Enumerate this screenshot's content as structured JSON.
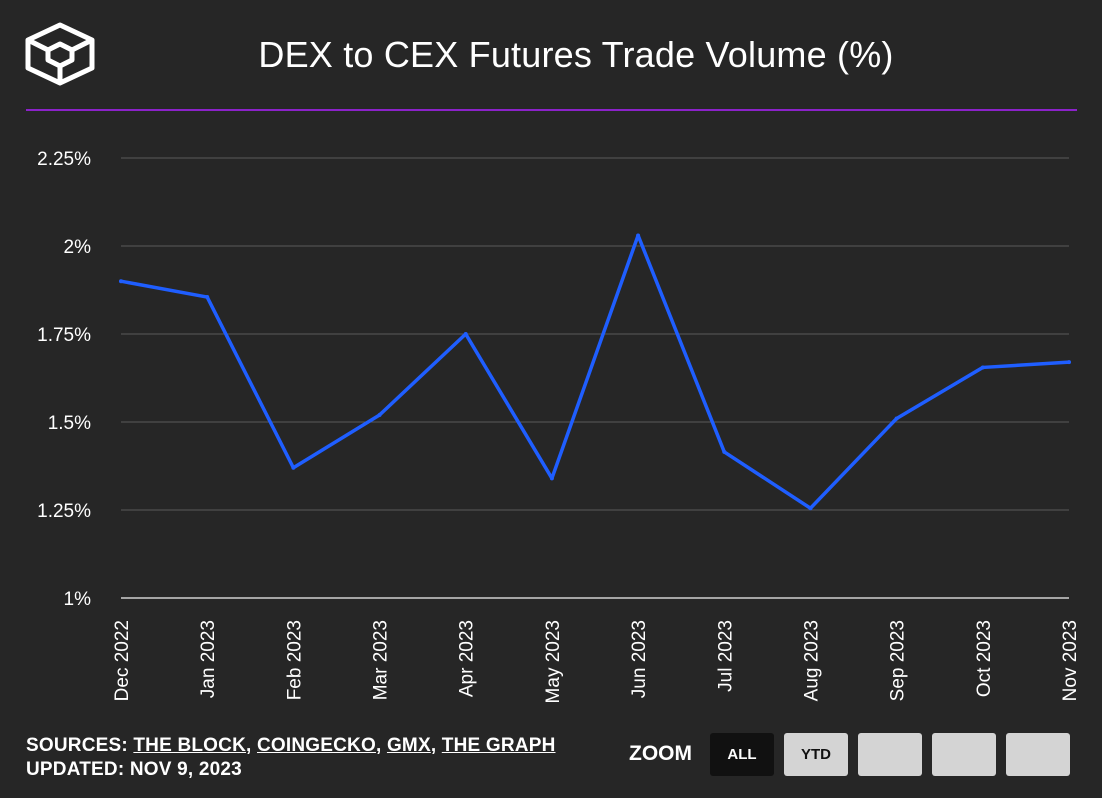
{
  "header": {
    "title": "DEX to CEX Futures Trade Volume (%)",
    "logo_icon": "cube-logo-icon"
  },
  "colors": {
    "background": "#262626",
    "line": "#1f5eff",
    "divider": "#8b22c9",
    "grid": "#5a5a5a"
  },
  "chart_data": {
    "type": "line",
    "title": "DEX to CEX Futures Trade Volume (%)",
    "categories": [
      "Dec 2022",
      "Jan 2023",
      "Feb 2023",
      "Mar 2023",
      "Apr 2023",
      "May 2023",
      "Jun 2023",
      "Jul 2023",
      "Aug 2023",
      "Sep 2023",
      "Oct 2023",
      "Nov 2023"
    ],
    "series": [
      {
        "name": "DEX to CEX Futures Trade Volume (%)",
        "values": [
          1.9,
          1.855,
          1.37,
          1.52,
          1.75,
          1.34,
          2.03,
          1.415,
          1.255,
          1.51,
          1.655,
          1.67
        ]
      }
    ],
    "y_ticks": [
      1,
      1.25,
      1.5,
      1.75,
      2,
      2.25
    ],
    "y_tick_labels": [
      "1%",
      "1.25%",
      "1.5%",
      "1.75%",
      "2%",
      "2.25%"
    ],
    "ylim": [
      1,
      2.25
    ],
    "xlabel": "",
    "ylabel": "",
    "grid": true,
    "legend": "none"
  },
  "footer": {
    "sources_label": "SOURCES:",
    "sources": [
      "THE BLOCK",
      "COINGECKO",
      "GMX",
      "THE GRAPH"
    ],
    "updated_label": "UPDATED:",
    "updated_value": "NOV 9, 2023"
  },
  "zoom": {
    "label": "ZOOM",
    "buttons": [
      {
        "label": "ALL",
        "active": true
      },
      {
        "label": "YTD",
        "active": false
      },
      {
        "label": "",
        "active": false
      },
      {
        "label": "",
        "active": false
      },
      {
        "label": "",
        "active": false
      }
    ]
  }
}
